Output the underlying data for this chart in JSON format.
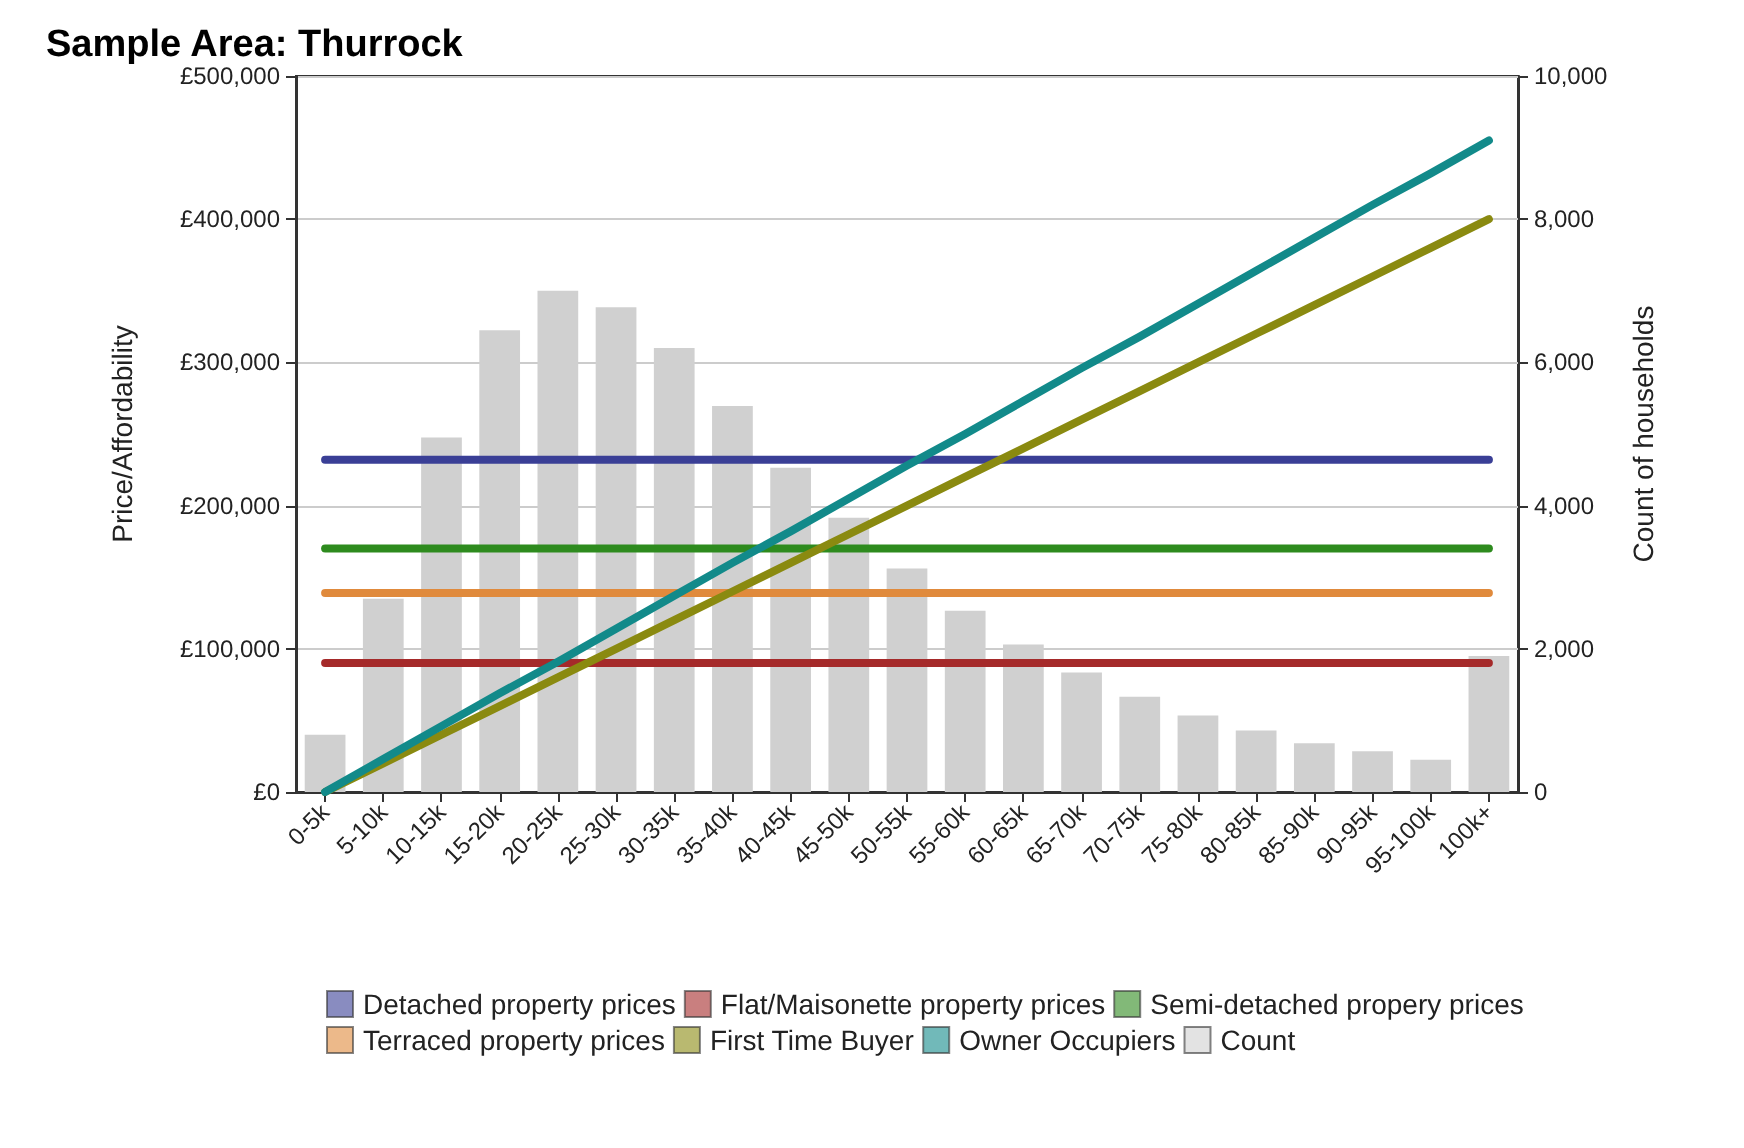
{
  "chart_data": {
    "type": "line",
    "title": "Sample Area: Thurrock",
    "ylabel": "Price/Affordability",
    "y2label": "Count of households",
    "categories": [
      "0-5k",
      "5-10k",
      "10-15k",
      "15-20k",
      "20-25k",
      "25-30k",
      "30-35k",
      "35-40k",
      "40-45k",
      "45-50k",
      "50-55k",
      "55-60k",
      "60-65k",
      "65-70k",
      "70-75k",
      "75-80k",
      "80-85k",
      "85-90k",
      "90-95k",
      "95-100k",
      "100k+"
    ],
    "series": [
      {
        "name": "Detached property prices",
        "color": "#3a3f96",
        "values": [
          232000,
          232000,
          232000,
          232000,
          232000,
          232000,
          232000,
          232000,
          232000,
          232000,
          232000,
          232000,
          232000,
          232000,
          232000,
          232000,
          232000,
          232000,
          232000,
          232000,
          232000
        ]
      },
      {
        "name": "Flat/Maisonette property prices",
        "color": "#a52a2a",
        "values": [
          90000,
          90000,
          90000,
          90000,
          90000,
          90000,
          90000,
          90000,
          90000,
          90000,
          90000,
          90000,
          90000,
          90000,
          90000,
          90000,
          90000,
          90000,
          90000,
          90000,
          90000
        ]
      },
      {
        "name": "Semi-detached propery prices",
        "color": "#2e8b1e",
        "values": [
          170000,
          170000,
          170000,
          170000,
          170000,
          170000,
          170000,
          170000,
          170000,
          170000,
          170000,
          170000,
          170000,
          170000,
          170000,
          170000,
          170000,
          170000,
          170000,
          170000,
          170000
        ]
      },
      {
        "name": "Terraced property prices",
        "color": "#e08a3c",
        "values": [
          139000,
          139000,
          139000,
          139000,
          139000,
          139000,
          139000,
          139000,
          139000,
          139000,
          139000,
          139000,
          139000,
          139000,
          139000,
          139000,
          139000,
          139000,
          139000,
          139000,
          139000
        ]
      },
      {
        "name": "First Time Buyer",
        "color": "#8a8a10",
        "values": [
          0,
          20000,
          40000,
          60000,
          80000,
          100000,
          120000,
          140000,
          160000,
          180000,
          200000,
          220000,
          240000,
          260000,
          280000,
          300000,
          320000,
          340000,
          360000,
          380000,
          400000
        ]
      },
      {
        "name": "Owner Occupiers",
        "color": "#128a8a",
        "values": [
          0,
          23000,
          46000,
          69000,
          91000,
          114000,
          137000,
          160000,
          182000,
          205000,
          228000,
          250000,
          273000,
          296000,
          318000,
          341000,
          364000,
          387000,
          410000,
          432000,
          455000
        ]
      },
      {
        "name": "Count",
        "type": "bar",
        "axis": "y2",
        "color": "#d0d0d0",
        "values": [
          800,
          2700,
          4950,
          6450,
          7000,
          6770,
          6200,
          5390,
          4530,
          3830,
          3120,
          2530,
          2060,
          1670,
          1330,
          1070,
          860,
          680,
          570,
          450,
          1900
        ]
      }
    ],
    "ylim": [
      0,
      500000
    ],
    "yticks": [
      {
        "value": 0,
        "label": "£0"
      },
      {
        "value": 100000,
        "label": "£100,000"
      },
      {
        "value": 200000,
        "label": "£200,000"
      },
      {
        "value": 300000,
        "label": "£300,000"
      },
      {
        "value": 400000,
        "label": "£400,000"
      },
      {
        "value": 500000,
        "label": "£500,000"
      }
    ],
    "y2lim": [
      0,
      10000
    ],
    "y2ticks": [
      0,
      {
        "value": 2000,
        "label": "2,000"
      },
      {
        "value": 4000,
        "label": "4,000"
      },
      {
        "value": 6000,
        "label": "6,000"
      },
      {
        "value": 8000,
        "label": "8,000"
      },
      {
        "value": 10000,
        "label": "10,000"
      }
    ],
    "grid": "y",
    "legend": "bottom",
    "marker": "none",
    "line_style": "solid"
  }
}
